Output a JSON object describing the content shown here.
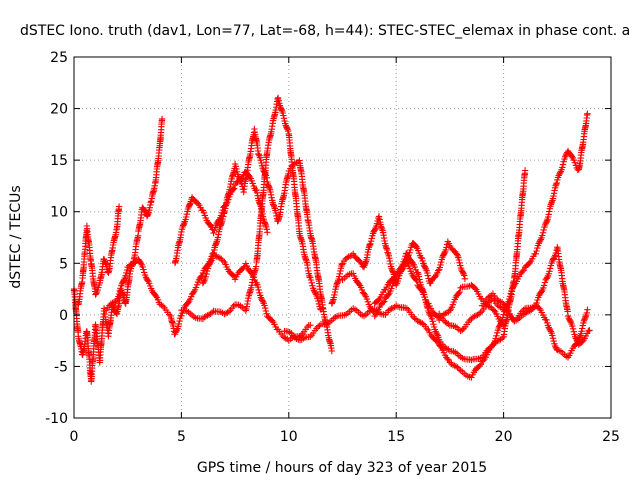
{
  "chart_data": {
    "type": "scatter",
    "title": "dSTEC Iono. truth (dav1, Lon=77, Lat=-68, h=44): STEC-STEC_elemax in phase cont. a",
    "xlabel": "GPS time / hours of day 323 of year 2015",
    "ylabel": "dSTEC  / TECUs",
    "xlim": [
      0,
      25
    ],
    "ylim": [
      -10,
      25
    ],
    "xticks": [
      0,
      5,
      10,
      15,
      20,
      25
    ],
    "yticks": [
      -10,
      -5,
      0,
      5,
      10,
      15,
      20,
      25
    ],
    "grid": true,
    "marker": "+",
    "color": "#ff0000",
    "series": [
      {
        "x": [
          0.0,
          0.2,
          0.4,
          0.6,
          0.8,
          1.0,
          1.2,
          1.4,
          1.6,
          1.8,
          2.0,
          2.2,
          2.4,
          2.6,
          2.8,
          3.0,
          3.2,
          3.4,
          3.6,
          3.8,
          4.0,
          4.1
        ],
        "y": [
          2.5,
          -2.0,
          -4.0,
          -1.5,
          -6.5,
          -1.0,
          -4.5,
          0.5,
          -2.0,
          1.0,
          0.0,
          2.5,
          1.0,
          4.0,
          5.5,
          8.0,
          10.5,
          9.5,
          11.0,
          13.0,
          16.5,
          19.0
        ]
      },
      {
        "x": [
          0.2,
          0.4,
          0.5,
          0.6,
          0.8,
          1.0,
          1.2,
          1.4,
          1.6,
          1.8,
          2.0,
          2.1
        ],
        "y": [
          1.0,
          3.5,
          6.0,
          8.5,
          5.0,
          2.0,
          3.0,
          5.5,
          4.0,
          6.5,
          8.5,
          10.5
        ]
      },
      {
        "x": [
          1.5,
          2.0,
          2.5,
          3.0,
          3.5,
          4.0,
          4.5,
          4.7,
          5.0,
          5.5,
          6.0,
          6.5,
          7.0,
          7.5,
          8.0,
          8.5,
          9.0,
          9.5,
          10.0,
          10.5,
          11.0
        ],
        "y": [
          0.5,
          1.5,
          4.5,
          5.5,
          3.0,
          1.0,
          0.0,
          -2.0,
          0.0,
          2.0,
          4.0,
          6.0,
          5.0,
          3.5,
          5.0,
          3.0,
          0.0,
          -1.5,
          -2.5,
          -2.0,
          -1.0
        ]
      },
      {
        "x": [
          4.7,
          5.0,
          5.5,
          6.0,
          6.5,
          7.0,
          7.5,
          8.0,
          8.5,
          9.0
        ],
        "y": [
          5.0,
          8.0,
          11.5,
          10.0,
          8.0,
          10.5,
          12.5,
          14.0,
          12.0,
          8.0
        ]
      },
      {
        "x": [
          5.0,
          5.5,
          6.0,
          6.5,
          7.0,
          7.5,
          8.0,
          8.5,
          9.0,
          9.5,
          10.0,
          10.5,
          11.0,
          11.5
        ],
        "y": [
          0.5,
          0.0,
          -0.5,
          0.5,
          0.0,
          1.0,
          0.5,
          5.0,
          16.0,
          21.0,
          17.5,
          8.0,
          3.5,
          0.5
        ]
      },
      {
        "x": [
          6.0,
          6.5,
          7.0,
          7.5,
          7.9,
          8.4,
          8.6,
          9.0,
          9.5,
          10.0,
          10.5,
          10.9,
          11.2,
          11.6,
          12.0
        ],
        "y": [
          3.0,
          6.0,
          10.0,
          14.5,
          12.0,
          18.0,
          15.5,
          13.0,
          9.0,
          14.0,
          15.0,
          9.0,
          6.0,
          0.5,
          -3.5
        ]
      },
      {
        "x": [
          9.8,
          10.2,
          10.6,
          11.0,
          11.5,
          12.0,
          12.5,
          13.0,
          13.5,
          14.0,
          14.5,
          15.0,
          15.5,
          16.0,
          16.5,
          17.0,
          17.5,
          18.0,
          18.5,
          19.0,
          19.5,
          20.0,
          20.5,
          21.0
        ],
        "y": [
          -1.5,
          -2.0,
          -2.5,
          -2.0,
          -1.0,
          -0.5,
          0.0,
          0.5,
          0.0,
          0.5,
          0.0,
          1.0,
          0.5,
          -0.5,
          -1.5,
          -3.0,
          -4.5,
          -5.5,
          -6.0,
          -4.5,
          -3.0,
          -2.0,
          3.5,
          14.0
        ]
      },
      {
        "x": [
          12.0,
          12.5,
          13.0,
          13.5,
          13.8,
          14.2,
          14.6,
          15.0,
          15.4,
          15.8,
          16.2,
          16.6,
          17.0,
          17.4,
          17.8,
          18.2
        ],
        "y": [
          1.0,
          5.0,
          6.0,
          4.5,
          7.0,
          9.5,
          6.0,
          3.0,
          5.0,
          7.0,
          5.5,
          3.0,
          4.5,
          7.0,
          6.0,
          3.5
        ]
      },
      {
        "x": [
          12.5,
          13.0,
          13.5,
          14.0,
          14.5,
          15.0,
          15.5,
          16.0,
          16.5,
          17.0,
          17.5,
          18.0,
          18.5,
          19.0,
          19.5,
          20.0,
          20.5,
          21.0,
          21.5,
          22.0,
          22.5,
          23.0,
          23.5,
          23.9
        ],
        "y": [
          3.5,
          4.0,
          2.0,
          0.0,
          1.5,
          3.5,
          6.0,
          4.0,
          0.5,
          -2.5,
          -3.5,
          -4.0,
          -4.5,
          -4.0,
          -3.0,
          0.0,
          3.0,
          4.5,
          6.0,
          9.0,
          13.0,
          16.0,
          14.0,
          19.5
        ]
      },
      {
        "x": [
          17.0,
          17.5,
          18.0,
          18.5,
          19.0,
          19.5,
          20.0,
          20.5,
          21.0,
          21.5,
          22.0,
          22.5,
          23.0,
          23.5,
          24.0
        ],
        "y": [
          0.0,
          -1.0,
          -1.5,
          -0.5,
          0.5,
          1.5,
          0.5,
          -0.5,
          0.0,
          1.0,
          3.5,
          6.5,
          0.0,
          -3.0,
          -1.5
        ]
      },
      {
        "x": [
          19.0,
          19.5,
          20.0,
          20.5,
          21.0,
          21.5,
          22.0,
          22.5,
          23.0,
          23.5,
          23.9
        ],
        "y": [
          1.0,
          2.0,
          1.0,
          -0.5,
          0.5,
          1.0,
          -0.5,
          -3.5,
          -4.0,
          -2.5,
          0.5
        ]
      },
      {
        "x": [
          14.0,
          14.5,
          15.0,
          15.5,
          16.0,
          16.5,
          17.0,
          17.5,
          18.0,
          18.5,
          19.0,
          19.5,
          20.0
        ],
        "y": [
          1.0,
          2.5,
          4.0,
          5.0,
          3.0,
          1.0,
          -0.5,
          0.5,
          2.5,
          3.0,
          1.5,
          0.5,
          -1.0
        ]
      }
    ]
  }
}
